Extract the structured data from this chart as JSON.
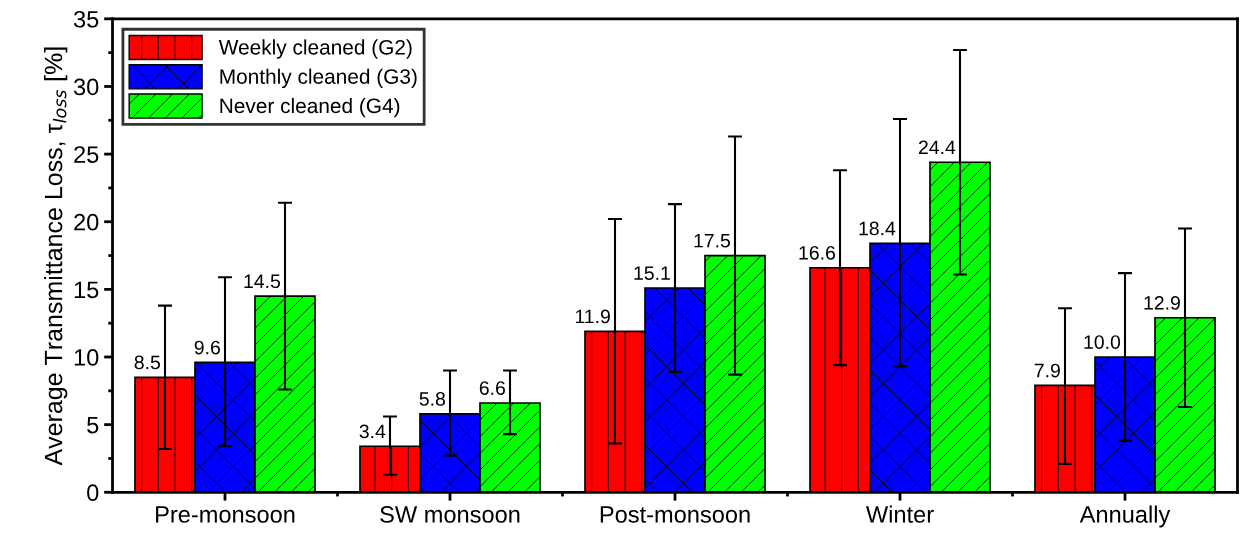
{
  "chart_data": {
    "type": "bar",
    "ylabel": "Average Transmittance Loss, τ$_{loss}$ [%]",
    "categories": [
      "Pre-monsoon",
      "SW monsoon",
      "Post-monsoon",
      "Winter",
      "Annually"
    ],
    "series": [
      {
        "name": "Weekly cleaned (G2)",
        "color": "#ff0000",
        "values": [
          8.5,
          3.4,
          11.9,
          16.6,
          7.9
        ],
        "value_labels": [
          "8.5",
          "3.4",
          "11.9",
          "16.6",
          "7.9"
        ],
        "errors": [
          [
            3.2,
            13.8
          ],
          [
            1.3,
            5.6
          ],
          [
            3.6,
            20.2
          ],
          [
            9.4,
            23.8
          ],
          [
            2.1,
            13.6
          ]
        ]
      },
      {
        "name": "Monthly cleaned (G3)",
        "color": "#0000ff",
        "values": [
          9.6,
          5.8,
          15.1,
          18.4,
          10.0
        ],
        "value_labels": [
          "9.6",
          "5.8",
          "15.1",
          "18.4",
          "10.0"
        ],
        "errors": [
          [
            3.4,
            15.9
          ],
          [
            2.7,
            9.0
          ],
          [
            8.9,
            21.3
          ],
          [
            9.3,
            27.6
          ],
          [
            3.8,
            16.2
          ]
        ]
      },
      {
        "name": "Never cleaned (G4)",
        "color": "#00ff00",
        "values": [
          14.5,
          6.6,
          17.5,
          24.4,
          12.9
        ],
        "value_labels": [
          "14.5",
          "6.6",
          "17.5",
          "24.4",
          "12.9"
        ],
        "errors": [
          [
            7.6,
            21.4
          ],
          [
            4.3,
            9.0
          ],
          [
            8.7,
            26.3
          ],
          [
            16.1,
            32.7
          ],
          [
            6.3,
            19.5
          ]
        ]
      }
    ],
    "ylim": [
      0,
      35
    ],
    "yticks": [
      0,
      5,
      10,
      15,
      20,
      25,
      30,
      35
    ],
    "grid": false,
    "legend": "top left"
  }
}
